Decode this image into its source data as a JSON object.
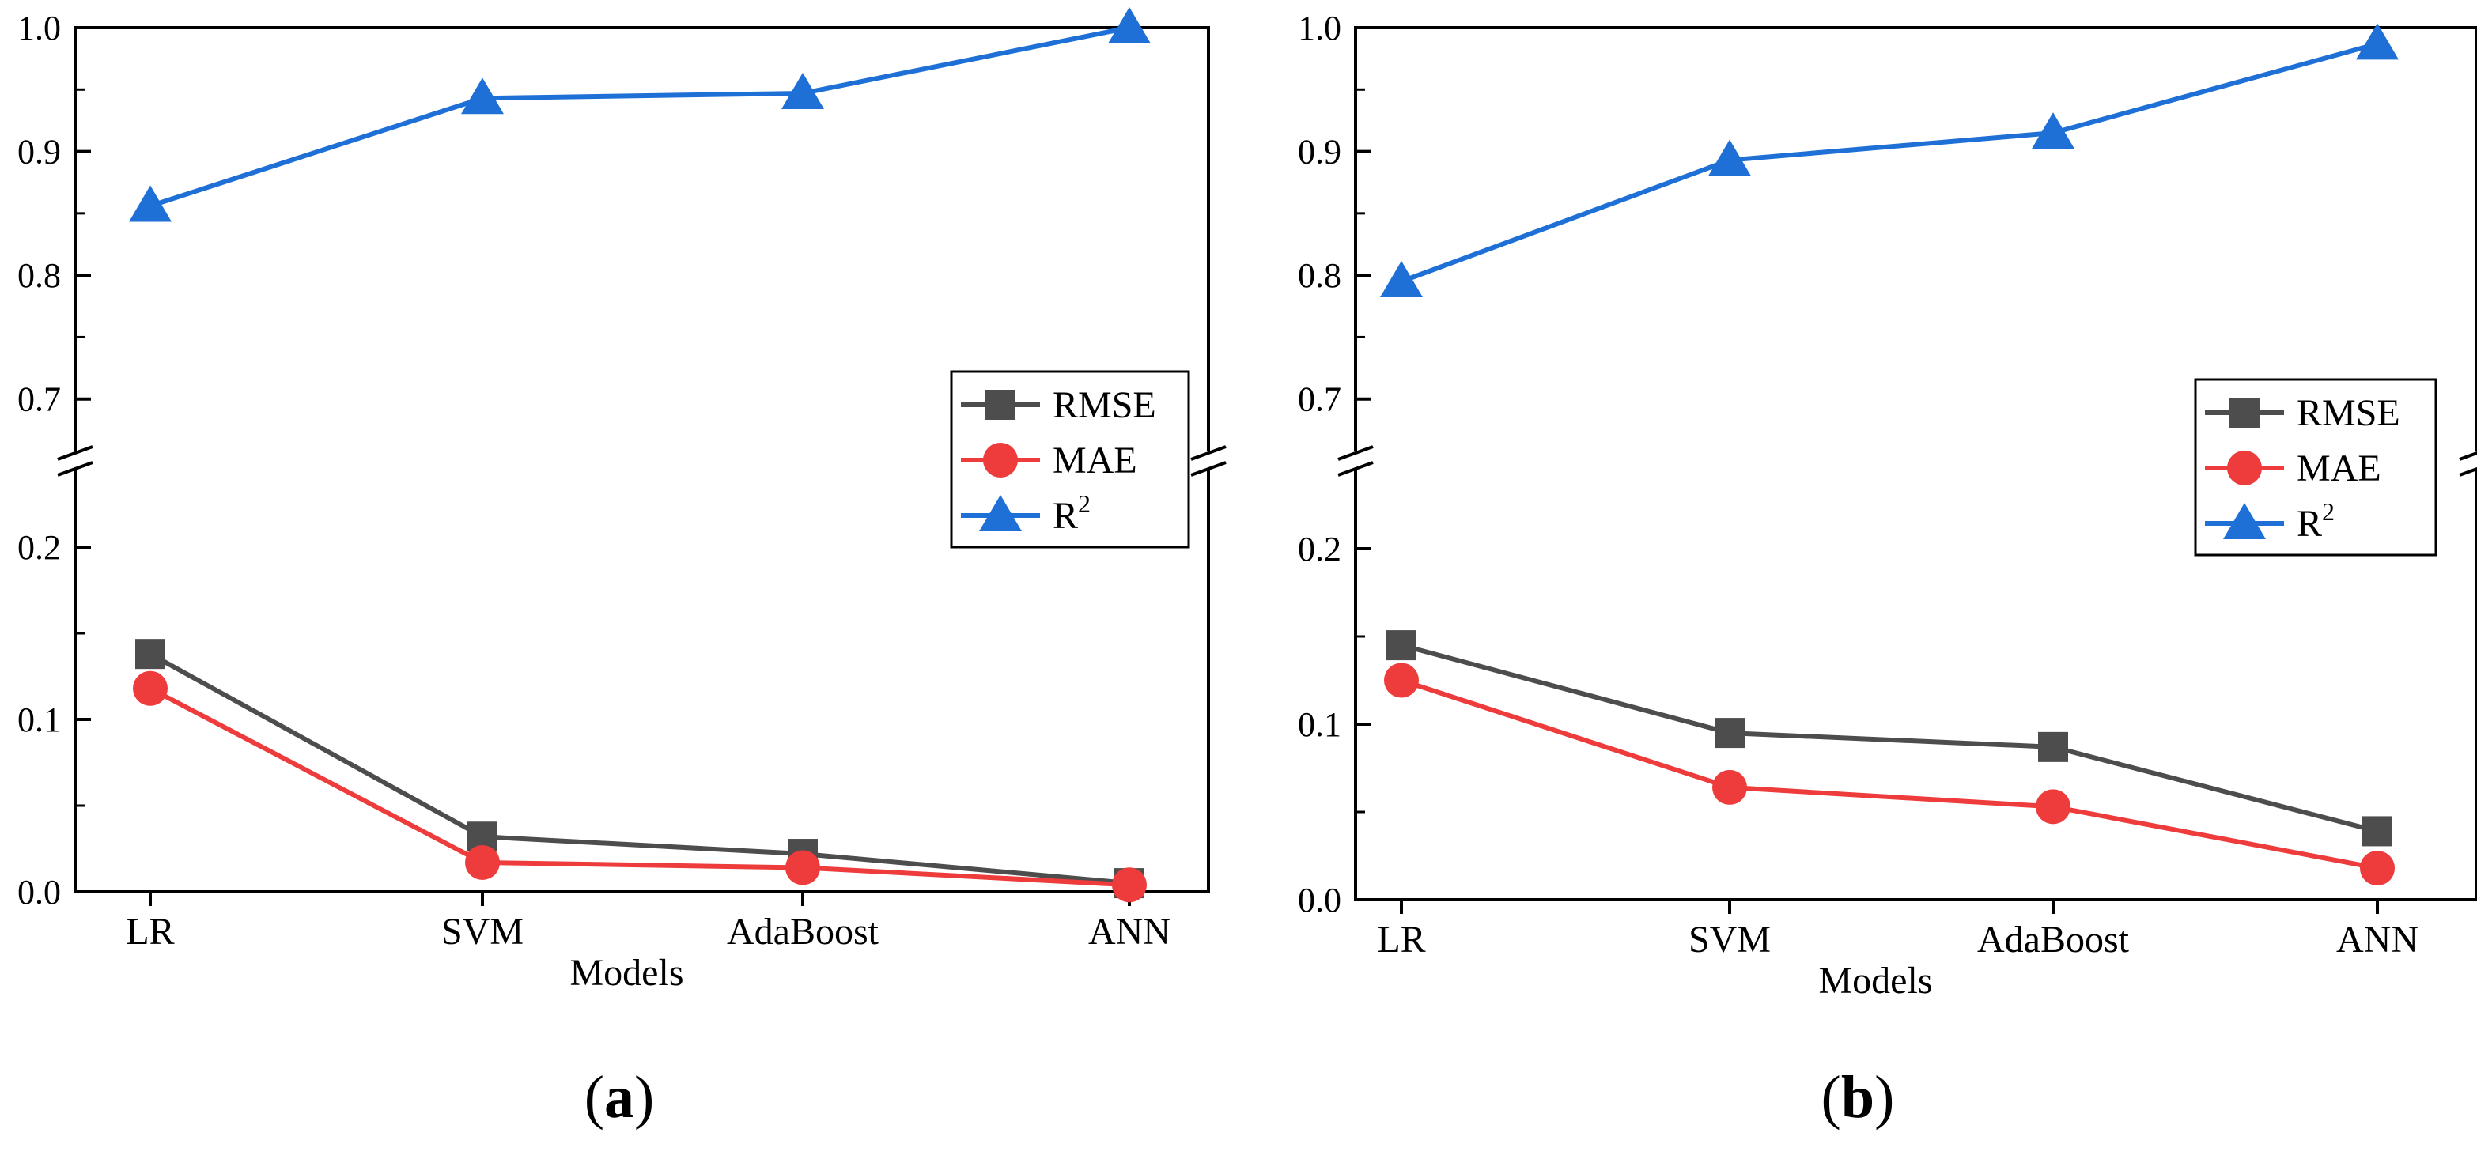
{
  "chart_data": [
    {
      "type": "line",
      "caption_letter": "a",
      "xlabel": "Models",
      "ylabel": "",
      "categories": [
        "LR",
        "SVM",
        "AdaBoost",
        "ANN"
      ],
      "axis_break": true,
      "upper_range": [
        0.65,
        1.0
      ],
      "upper_ticks": [
        "0.7",
        "0.8",
        "0.9",
        "1.0"
      ],
      "lower_range": [
        0.0,
        0.25
      ],
      "lower_ticks": [
        "0.0",
        "0.1",
        "0.2"
      ],
      "legend_position": "right",
      "series": [
        {
          "name": "RMSE",
          "marker": "square",
          "color": "#4d4d4d",
          "values": [
            0.138,
            0.032,
            0.022,
            0.005
          ]
        },
        {
          "name": "MAE",
          "marker": "circle",
          "color": "#ee3b3b",
          "values": [
            0.118,
            0.017,
            0.014,
            0.004
          ]
        },
        {
          "name": "R",
          "superscript": "2",
          "marker": "triangle",
          "color": "#1e6fd6",
          "values": [
            0.856,
            0.943,
            0.947,
            1.0
          ]
        }
      ]
    },
    {
      "type": "line",
      "caption_letter": "b",
      "xlabel": "Models",
      "ylabel": "",
      "categories": [
        "LR",
        "SVM",
        "AdaBoost",
        "ANN"
      ],
      "axis_break": true,
      "upper_range": [
        0.65,
        1.0
      ],
      "upper_ticks": [
        "0.7",
        "0.8",
        "0.9",
        "1.0"
      ],
      "lower_range": [
        0.0,
        0.25
      ],
      "lower_ticks": [
        "0.0",
        "0.1",
        "0.2"
      ],
      "legend_position": "right",
      "series": [
        {
          "name": "RMSE",
          "marker": "square",
          "color": "#4d4d4d",
          "values": [
            0.145,
            0.095,
            0.087,
            0.039
          ]
        },
        {
          "name": "MAE",
          "marker": "circle",
          "color": "#ee3b3b",
          "values": [
            0.125,
            0.064,
            0.053,
            0.018
          ]
        },
        {
          "name": "R",
          "superscript": "2",
          "marker": "triangle",
          "color": "#1e6fd6",
          "values": [
            0.795,
            0.893,
            0.915,
            0.987
          ]
        }
      ]
    }
  ]
}
